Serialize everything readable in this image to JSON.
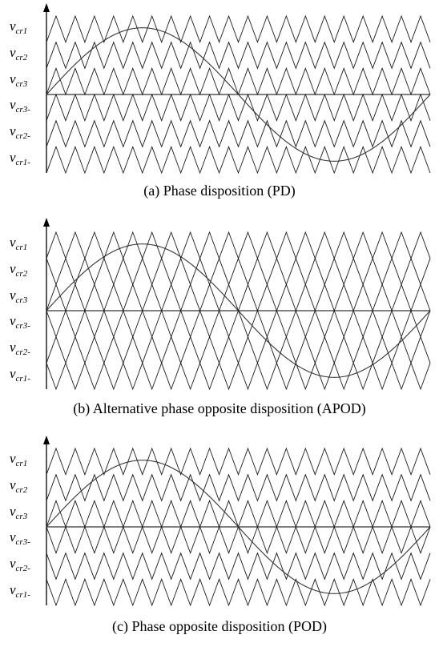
{
  "panels": [
    {
      "id": "a",
      "caption": "(a) Phase disposition (PD)",
      "labels": [
        {
          "var": "v",
          "sub": "cr1"
        },
        {
          "var": "v",
          "sub": "cr2"
        },
        {
          "var": "v",
          "sub": "cr3"
        },
        {
          "var": "v",
          "sub": "cr3-"
        },
        {
          "var": "v",
          "sub": "cr2-"
        },
        {
          "var": "v",
          "sub": "cr1-"
        }
      ],
      "carrier_phase": [
        "normal",
        "normal",
        "normal",
        "normal",
        "normal",
        "normal"
      ]
    },
    {
      "id": "b",
      "caption": "(b) Alternative phase opposite disposition (APOD)",
      "labels": [
        {
          "var": "v",
          "sub": "cr1"
        },
        {
          "var": "v",
          "sub": "cr2"
        },
        {
          "var": "v",
          "sub": "cr3"
        },
        {
          "var": "v",
          "sub": "cr3-"
        },
        {
          "var": "v",
          "sub": "cr2-"
        },
        {
          "var": "v",
          "sub": "cr1-"
        }
      ],
      "carrier_phase": [
        "normal",
        "inverted",
        "normal",
        "inverted",
        "normal",
        "inverted"
      ]
    },
    {
      "id": "c",
      "caption": "(c) Phase opposite disposition (POD)",
      "labels": [
        {
          "var": "v",
          "sub": "cr1"
        },
        {
          "var": "v",
          "sub": "cr2"
        },
        {
          "var": "v",
          "sub": "cr3"
        },
        {
          "var": "v",
          "sub": "cr3-"
        },
        {
          "var": "v",
          "sub": "cr2-"
        },
        {
          "var": "v",
          "sub": "cr1-"
        }
      ],
      "carrier_phase": [
        "normal",
        "normal",
        "normal",
        "inverted",
        "inverted",
        "inverted"
      ]
    }
  ],
  "carrier_periods": 20,
  "reference_periods": 1,
  "colors": {
    "carrier": "#1a1a1a",
    "reference": "#333333",
    "axis": "#000000"
  }
}
